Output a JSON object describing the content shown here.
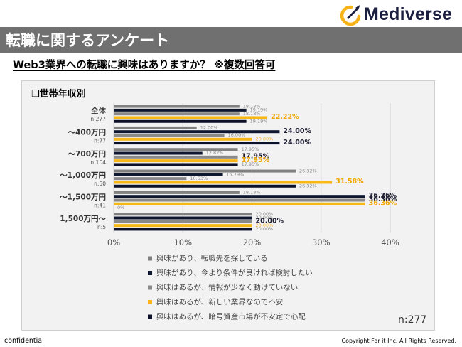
{
  "logo": {
    "text": "Mediverse"
  },
  "header": {
    "title": "転職に関するアンケート"
  },
  "question": "Web3業界への転職に興味はありますか？ ※複数回答可",
  "section_label": "❏世帯年収別",
  "total_n": "n:277",
  "footer": {
    "left": "confidential",
    "right": "Copyright For it Inc. All Rights Reserved."
  },
  "colors": {
    "s1": "#808080",
    "s2": "#0e1630",
    "s3": "#898989",
    "s4": "#f8b617",
    "s5": "#0c1028",
    "title_band": "#707070"
  },
  "chart_data": {
    "type": "bar",
    "orientation": "horizontal",
    "categories": [
      {
        "label": "全体",
        "n": "n:277"
      },
      {
        "label": "～400万円",
        "n": "n:77"
      },
      {
        "label": "～700万円",
        "n": "n:104"
      },
      {
        "label": "～1,000万円",
        "n": "n:50"
      },
      {
        "label": "～1,500万円",
        "n": "n:41"
      },
      {
        "label": "1,500万円～",
        "n": "n:5"
      }
    ],
    "series": [
      {
        "name": "興味があり、転職先を探している",
        "color_key": "s1",
        "values": [
          18.18,
          12.0,
          17.95,
          26.32,
          18.18,
          20.0
        ],
        "labels": [
          "18.18%",
          "12.00%",
          "17.95%",
          "26.32%",
          "18.18%",
          "20.00%"
        ]
      },
      {
        "name": "興味があり、今より条件が良ければ検討したい",
        "color_key": "s2",
        "values": [
          19.19,
          24.0,
          12.82,
          15.79,
          36.36,
          20.0
        ],
        "labels": [
          "19.19%",
          "24.00%",
          "12.82%",
          "15.79%",
          "36.36%",
          "20.00%"
        ]
      },
      {
        "name": "興味はあるが、情報が少なく動けていない",
        "color_key": "s3",
        "values": [
          18.18,
          16.0,
          17.95,
          10.53,
          36.36,
          20.0
        ],
        "labels": [
          "18.18%",
          "16.00%",
          "17.95%",
          "10.53%",
          "36.36%",
          "20.00%"
        ]
      },
      {
        "name": "興味はあるが、新しい業界なので不安",
        "color_key": "s4",
        "values": [
          22.22,
          20.0,
          17.95,
          31.58,
          36.36,
          20.0
        ],
        "labels": [
          "22.22%",
          "20.00%",
          "17.95%",
          "31.58%",
          "36.36%",
          "20.00%"
        ]
      },
      {
        "name": "興味はあるが、暗号資産市場が不安定で心配",
        "color_key": "s5",
        "values": [
          19.19,
          24.0,
          17.95,
          26.32,
          0,
          20.0
        ],
        "labels": [
          "19.19%",
          "24.00%",
          "17.95%",
          "26.32%",
          "0%",
          "20.00%"
        ]
      }
    ],
    "xlim": [
      0,
      40
    ],
    "xticks": [
      "0%",
      "10%",
      "20%",
      "30%",
      "40%"
    ],
    "legend_position": "bottom"
  }
}
